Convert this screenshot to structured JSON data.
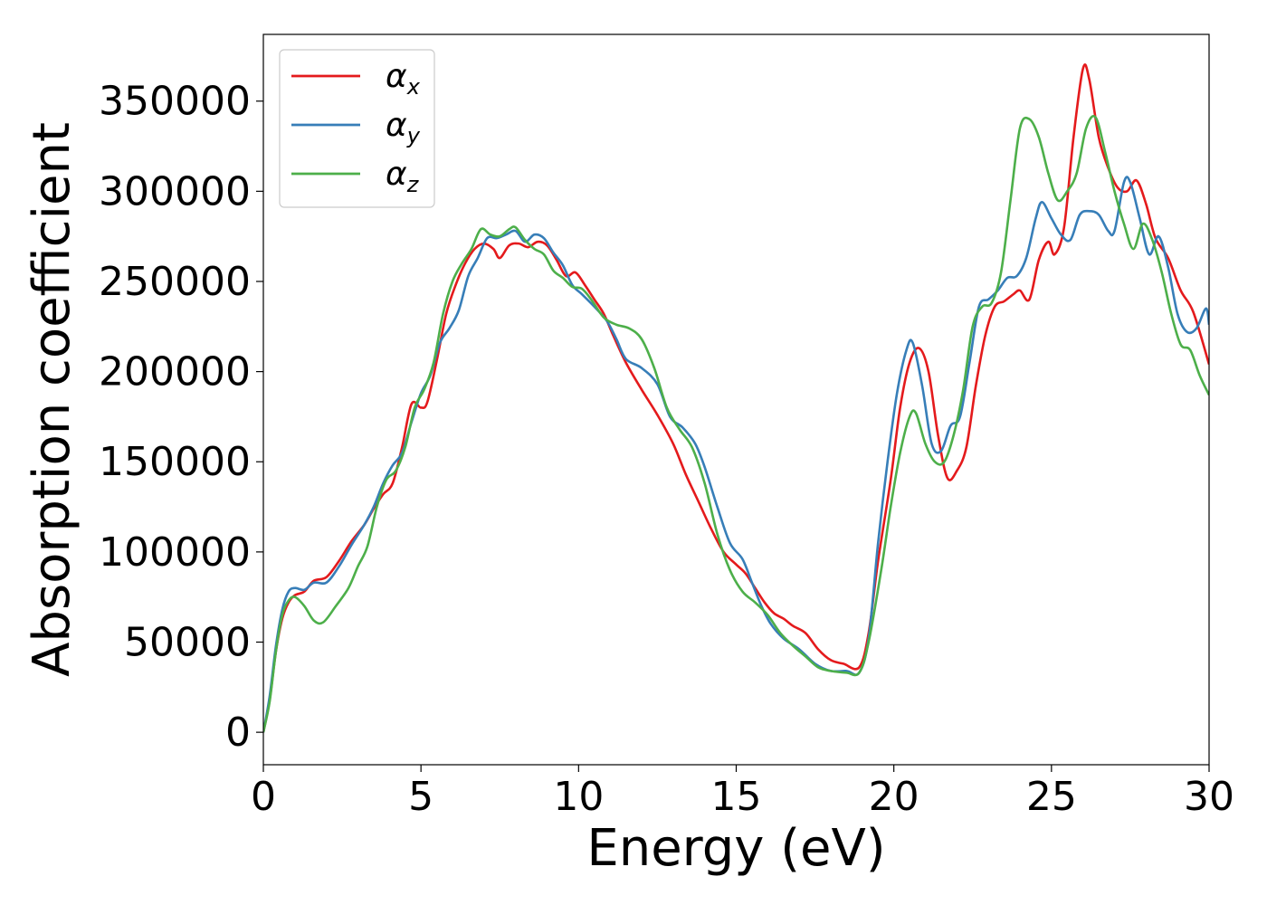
{
  "chart_data": {
    "type": "line",
    "title": "",
    "xlabel": "Energy (eV)",
    "ylabel": "Absorption coefficient",
    "xlim": [
      0,
      30
    ],
    "ylim": [
      -18000,
      387000
    ],
    "xticks": [
      0,
      5,
      10,
      15,
      20,
      25,
      30
    ],
    "yticks": [
      0,
      50000,
      100000,
      150000,
      200000,
      250000,
      300000,
      350000
    ],
    "grid": false,
    "legend_position": "top-left",
    "series": [
      {
        "name": "α",
        "subscript": "x",
        "color": "#e41a1c",
        "points": [
          [
            0,
            0
          ],
          [
            0.2,
            18000
          ],
          [
            0.4,
            45000
          ],
          [
            0.6,
            63000
          ],
          [
            0.8,
            72000
          ],
          [
            1.0,
            76000
          ],
          [
            1.3,
            78000
          ],
          [
            1.6,
            84000
          ],
          [
            2.0,
            86000
          ],
          [
            2.4,
            95000
          ],
          [
            2.8,
            106000
          ],
          [
            3.2,
            115000
          ],
          [
            3.5,
            124000
          ],
          [
            3.8,
            132000
          ],
          [
            4.1,
            138000
          ],
          [
            4.4,
            158000
          ],
          [
            4.7,
            182000
          ],
          [
            5.0,
            180000
          ],
          [
            5.2,
            183000
          ],
          [
            5.5,
            206000
          ],
          [
            5.8,
            232000
          ],
          [
            6.1,
            248000
          ],
          [
            6.4,
            260000
          ],
          [
            6.7,
            268000
          ],
          [
            7.0,
            271000
          ],
          [
            7.3,
            268000
          ],
          [
            7.5,
            263000
          ],
          [
            7.8,
            270000
          ],
          [
            8.1,
            271000
          ],
          [
            8.4,
            269000
          ],
          [
            8.7,
            272000
          ],
          [
            9.0,
            270000
          ],
          [
            9.3,
            262000
          ],
          [
            9.6,
            253000
          ],
          [
            9.9,
            255000
          ],
          [
            10.2,
            248000
          ],
          [
            10.5,
            240000
          ],
          [
            10.8,
            232000
          ],
          [
            11.1,
            220000
          ],
          [
            11.5,
            205000
          ],
          [
            12.0,
            190000
          ],
          [
            12.5,
            176000
          ],
          [
            13.0,
            160000
          ],
          [
            13.4,
            143000
          ],
          [
            13.8,
            128000
          ],
          [
            14.2,
            113000
          ],
          [
            14.6,
            100000
          ],
          [
            15.0,
            93000
          ],
          [
            15.3,
            88000
          ],
          [
            15.6,
            80000
          ],
          [
            15.9,
            72000
          ],
          [
            16.2,
            66000
          ],
          [
            16.5,
            63000
          ],
          [
            16.8,
            59000
          ],
          [
            17.2,
            55000
          ],
          [
            17.6,
            46000
          ],
          [
            18.0,
            40000
          ],
          [
            18.4,
            38000
          ],
          [
            18.9,
            36000
          ],
          [
            19.2,
            55000
          ],
          [
            19.5,
            95000
          ],
          [
            19.9,
            140000
          ],
          [
            20.2,
            180000
          ],
          [
            20.5,
            205000
          ],
          [
            20.8,
            213000
          ],
          [
            21.1,
            200000
          ],
          [
            21.4,
            165000
          ],
          [
            21.7,
            141000
          ],
          [
            22.0,
            145000
          ],
          [
            22.3,
            158000
          ],
          [
            22.6,
            192000
          ],
          [
            22.9,
            220000
          ],
          [
            23.2,
            236000
          ],
          [
            23.5,
            239000
          ],
          [
            23.8,
            243000
          ],
          [
            24.0,
            245000
          ],
          [
            24.3,
            240000
          ],
          [
            24.6,
            262000
          ],
          [
            24.9,
            272000
          ],
          [
            25.1,
            265000
          ],
          [
            25.4,
            280000
          ],
          [
            25.7,
            330000
          ],
          [
            26.0,
            368000
          ],
          [
            26.2,
            362000
          ],
          [
            26.5,
            330000
          ],
          [
            26.8,
            313000
          ],
          [
            27.1,
            302000
          ],
          [
            27.4,
            300000
          ],
          [
            27.7,
            306000
          ],
          [
            28.0,
            293000
          ],
          [
            28.3,
            274000
          ],
          [
            28.7,
            263000
          ],
          [
            29.1,
            245000
          ],
          [
            29.5,
            233000
          ],
          [
            30.0,
            204000
          ]
        ]
      },
      {
        "name": "α",
        "subscript": "y",
        "color": "#377eb8",
        "points": [
          [
            0,
            0
          ],
          [
            0.2,
            20000
          ],
          [
            0.4,
            48000
          ],
          [
            0.6,
            68000
          ],
          [
            0.8,
            78000
          ],
          [
            1.0,
            80000
          ],
          [
            1.3,
            79000
          ],
          [
            1.6,
            83000
          ],
          [
            2.0,
            83000
          ],
          [
            2.4,
            92000
          ],
          [
            2.8,
            104000
          ],
          [
            3.2,
            115000
          ],
          [
            3.5,
            125000
          ],
          [
            3.8,
            138000
          ],
          [
            4.1,
            148000
          ],
          [
            4.4,
            155000
          ],
          [
            4.7,
            172000
          ],
          [
            5.0,
            188000
          ],
          [
            5.3,
            198000
          ],
          [
            5.6,
            216000
          ],
          [
            5.9,
            224000
          ],
          [
            6.2,
            234000
          ],
          [
            6.5,
            253000
          ],
          [
            6.8,
            263000
          ],
          [
            7.1,
            274000
          ],
          [
            7.4,
            274000
          ],
          [
            7.7,
            276000
          ],
          [
            8.0,
            278000
          ],
          [
            8.3,
            272000
          ],
          [
            8.6,
            276000
          ],
          [
            8.9,
            274000
          ],
          [
            9.2,
            266000
          ],
          [
            9.5,
            259000
          ],
          [
            9.8,
            248000
          ],
          [
            10.1,
            243000
          ],
          [
            10.5,
            236000
          ],
          [
            10.9,
            228000
          ],
          [
            11.2,
            218000
          ],
          [
            11.5,
            207000
          ],
          [
            12.0,
            202000
          ],
          [
            12.5,
            193000
          ],
          [
            12.9,
            175000
          ],
          [
            13.3,
            169000
          ],
          [
            13.7,
            160000
          ],
          [
            14.0,
            147000
          ],
          [
            14.4,
            125000
          ],
          [
            14.8,
            105000
          ],
          [
            15.2,
            96000
          ],
          [
            15.5,
            83000
          ],
          [
            15.8,
            70000
          ],
          [
            16.1,
            60000
          ],
          [
            16.5,
            52000
          ],
          [
            17.0,
            46000
          ],
          [
            17.5,
            38000
          ],
          [
            18.0,
            34000
          ],
          [
            18.5,
            34000
          ],
          [
            18.9,
            33000
          ],
          [
            19.2,
            52000
          ],
          [
            19.5,
            105000
          ],
          [
            19.8,
            150000
          ],
          [
            20.1,
            188000
          ],
          [
            20.4,
            212000
          ],
          [
            20.6,
            216000
          ],
          [
            20.9,
            192000
          ],
          [
            21.2,
            160000
          ],
          [
            21.5,
            156000
          ],
          [
            21.8,
            170000
          ],
          [
            22.1,
            175000
          ],
          [
            22.4,
            205000
          ],
          [
            22.7,
            236000
          ],
          [
            23.0,
            240000
          ],
          [
            23.3,
            245000
          ],
          [
            23.6,
            252000
          ],
          [
            23.9,
            253000
          ],
          [
            24.2,
            263000
          ],
          [
            24.5,
            285000
          ],
          [
            24.7,
            294000
          ],
          [
            25.0,
            285000
          ],
          [
            25.3,
            276000
          ],
          [
            25.6,
            273000
          ],
          [
            25.9,
            287000
          ],
          [
            26.2,
            289000
          ],
          [
            26.5,
            287000
          ],
          [
            26.8,
            278000
          ],
          [
            27.0,
            278000
          ],
          [
            27.3,
            305000
          ],
          [
            27.5,
            305000
          ],
          [
            27.8,
            285000
          ],
          [
            28.1,
            265000
          ],
          [
            28.4,
            275000
          ],
          [
            28.7,
            258000
          ],
          [
            29.0,
            232000
          ],
          [
            29.3,
            222000
          ],
          [
            29.6,
            224000
          ],
          [
            29.9,
            235000
          ],
          [
            30.0,
            226000
          ]
        ]
      },
      {
        "name": "α",
        "subscript": "z",
        "color": "#4daf4a",
        "points": [
          [
            0,
            0
          ],
          [
            0.2,
            17000
          ],
          [
            0.4,
            45000
          ],
          [
            0.6,
            65000
          ],
          [
            0.8,
            73000
          ],
          [
            1.0,
            75000
          ],
          [
            1.3,
            70000
          ],
          [
            1.6,
            62000
          ],
          [
            1.9,
            61000
          ],
          [
            2.3,
            70000
          ],
          [
            2.7,
            80000
          ],
          [
            3.0,
            92000
          ],
          [
            3.3,
            103000
          ],
          [
            3.6,
            125000
          ],
          [
            3.9,
            140000
          ],
          [
            4.2,
            145000
          ],
          [
            4.5,
            158000
          ],
          [
            4.8,
            180000
          ],
          [
            5.1,
            190000
          ],
          [
            5.4,
            205000
          ],
          [
            5.7,
            232000
          ],
          [
            6.0,
            250000
          ],
          [
            6.3,
            260000
          ],
          [
            6.6,
            268000
          ],
          [
            6.9,
            279000
          ],
          [
            7.2,
            276000
          ],
          [
            7.5,
            275000
          ],
          [
            7.8,
            279000
          ],
          [
            8.0,
            280000
          ],
          [
            8.3,
            273000
          ],
          [
            8.6,
            268000
          ],
          [
            8.9,
            265000
          ],
          [
            9.2,
            256000
          ],
          [
            9.5,
            252000
          ],
          [
            9.8,
            247000
          ],
          [
            10.1,
            246000
          ],
          [
            10.4,
            240000
          ],
          [
            10.8,
            230000
          ],
          [
            11.2,
            226000
          ],
          [
            11.6,
            224000
          ],
          [
            12.0,
            218000
          ],
          [
            12.4,
            202000
          ],
          [
            12.8,
            180000
          ],
          [
            13.2,
            168000
          ],
          [
            13.6,
            158000
          ],
          [
            14.0,
            138000
          ],
          [
            14.4,
            110000
          ],
          [
            14.8,
            90000
          ],
          [
            15.2,
            78000
          ],
          [
            15.6,
            72000
          ],
          [
            16.0,
            65000
          ],
          [
            16.4,
            55000
          ],
          [
            16.8,
            48000
          ],
          [
            17.2,
            42000
          ],
          [
            17.6,
            36000
          ],
          [
            18.0,
            34000
          ],
          [
            18.5,
            33000
          ],
          [
            18.9,
            33000
          ],
          [
            19.2,
            50000
          ],
          [
            19.6,
            90000
          ],
          [
            19.9,
            125000
          ],
          [
            20.2,
            155000
          ],
          [
            20.5,
            175000
          ],
          [
            20.7,
            177000
          ],
          [
            21.0,
            160000
          ],
          [
            21.3,
            150000
          ],
          [
            21.6,
            150000
          ],
          [
            21.9,
            165000
          ],
          [
            22.2,
            190000
          ],
          [
            22.5,
            225000
          ],
          [
            22.8,
            236000
          ],
          [
            23.1,
            238000
          ],
          [
            23.4,
            255000
          ],
          [
            23.7,
            295000
          ],
          [
            24.0,
            335000
          ],
          [
            24.3,
            340000
          ],
          [
            24.6,
            330000
          ],
          [
            24.9,
            310000
          ],
          [
            25.2,
            295000
          ],
          [
            25.5,
            300000
          ],
          [
            25.8,
            310000
          ],
          [
            26.1,
            335000
          ],
          [
            26.4,
            341000
          ],
          [
            26.7,
            322000
          ],
          [
            27.0,
            300000
          ],
          [
            27.3,
            282000
          ],
          [
            27.6,
            268000
          ],
          [
            27.9,
            282000
          ],
          [
            28.2,
            273000
          ],
          [
            28.5,
            255000
          ],
          [
            28.8,
            232000
          ],
          [
            29.1,
            215000
          ],
          [
            29.4,
            212000
          ],
          [
            29.7,
            198000
          ],
          [
            30.0,
            187000
          ]
        ]
      }
    ]
  }
}
